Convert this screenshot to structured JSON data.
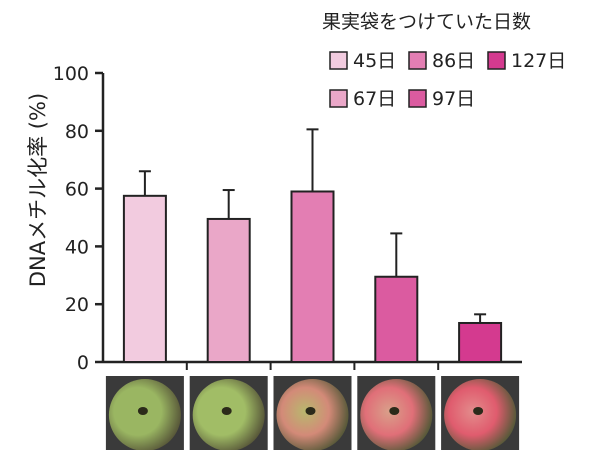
{
  "chart_data": {
    "type": "bar",
    "ylabel": "DNAメチル化率 (%)",
    "ylim": [
      0,
      100
    ],
    "yticks": [
      0,
      20,
      40,
      60,
      80,
      100
    ],
    "legend_title": "果実袋をつけていた日数",
    "legend_placement": "top-right",
    "categories": [
      "45日",
      "67日",
      "86日",
      "97日",
      "127日"
    ],
    "values": [
      57.5,
      49.5,
      59,
      29.5,
      13.5
    ],
    "errors": [
      8.5,
      10,
      21.5,
      15,
      3
    ],
    "colors": [
      "#f2cbdf",
      "#eaa7c8",
      "#e37eb3",
      "#db5ba0",
      "#d43a8f"
    ],
    "legend_order": [
      "45日",
      "86日",
      "127日",
      "67日",
      "97日"
    ],
    "photo_colors": [
      {
        "skin": "#9ab662",
        "blush": "#9ab662"
      },
      {
        "skin": "#a1bd66",
        "blush": "#a1bd66"
      },
      {
        "skin": "#b8b86e",
        "blush": "#d38a78"
      },
      {
        "skin": "#d9a08a",
        "blush": "#e06f78"
      },
      {
        "skin": "#e38c8c",
        "blush": "#e05c6e"
      }
    ]
  }
}
